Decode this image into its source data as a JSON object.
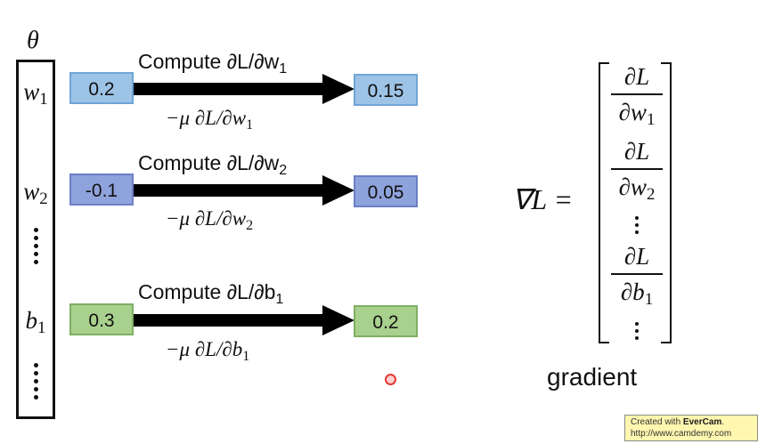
{
  "theta": {
    "label": "θ",
    "params": [
      {
        "symbol": "w",
        "sub": "1"
      },
      {
        "symbol": "w",
        "sub": "2"
      },
      {
        "symbol": "b",
        "sub": "1"
      }
    ]
  },
  "rows": [
    {
      "compute_prefix": "Compute ∂L/∂w",
      "compute_sub": "1",
      "initial_value": "0.2",
      "updated_value": "0.15",
      "step_prefix": "−μ ∂L/∂w",
      "step_sub": "1",
      "color": "#9dc3e6"
    },
    {
      "compute_prefix": "Compute ∂L/∂w",
      "compute_sub": "2",
      "initial_value": "-0.1",
      "updated_value": "0.05",
      "step_prefix": "−μ ∂L/∂w",
      "step_sub": "2",
      "color": "#8ea2dc"
    },
    {
      "compute_prefix": "Compute ∂L/∂b",
      "compute_sub": "1",
      "initial_value": "0.3",
      "updated_value": "0.2",
      "step_prefix": "−μ ∂L/∂b",
      "step_sub": "1",
      "color": "#a9d18e"
    }
  ],
  "gradient": {
    "lhs": "∇L =",
    "entries": [
      {
        "num": "∂L",
        "den": "∂w",
        "sub": "1"
      },
      {
        "num": "∂L",
        "den": "∂w",
        "sub": "2"
      },
      {
        "num": "∂L",
        "den": "∂b",
        "sub": "1"
      }
    ],
    "caption": "gradient"
  },
  "watermark": {
    "line1_prefix": "Created with ",
    "line1_brand": "EverCam",
    "line1_suffix": ".",
    "line2": "http://www.camdemy.com"
  }
}
